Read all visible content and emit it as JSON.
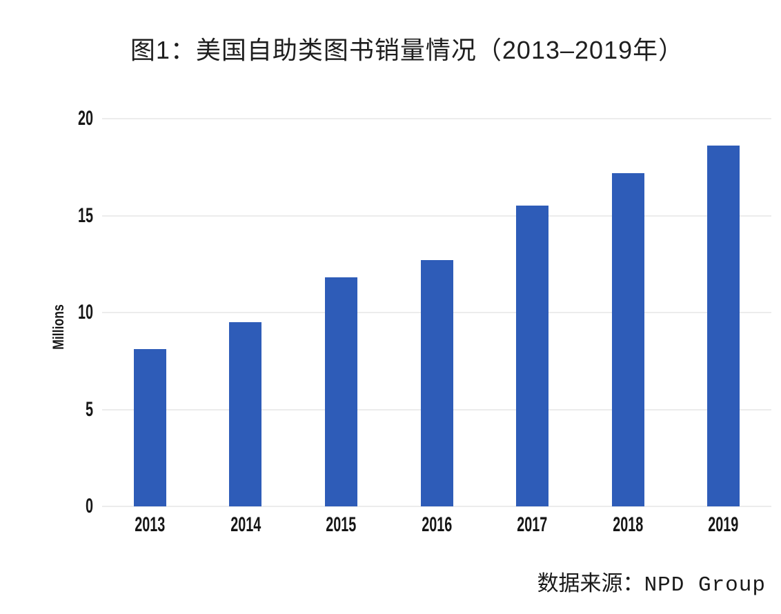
{
  "figure": {
    "title": "图1：美国自助类图书销量情况（2013–2019年）",
    "source": {
      "label": "数据来源：",
      "value": "NPD Group"
    }
  },
  "colors": {
    "bar": "#2e5cb8",
    "gridline": "#d9d9d9",
    "axis_text": "#161616",
    "title_text": "#1e1e1e",
    "source_text": "#1a1a1a"
  },
  "chart_data": {
    "type": "bar",
    "title": "图1：美国自助类图书销量情况（2013–2019年）",
    "categories": [
      "2013",
      "2014",
      "2015",
      "2016",
      "2017",
      "2018",
      "2019"
    ],
    "values": [
      8.1,
      9.5,
      11.8,
      12.7,
      15.5,
      17.2,
      18.6
    ],
    "xlabel": "",
    "ylabel": "Millions",
    "ylim": [
      0,
      20
    ],
    "yticks": [
      0,
      5,
      10,
      15,
      20
    ],
    "grid": true,
    "legend_position": "none",
    "source_note": "数据来源：NPD Group"
  }
}
